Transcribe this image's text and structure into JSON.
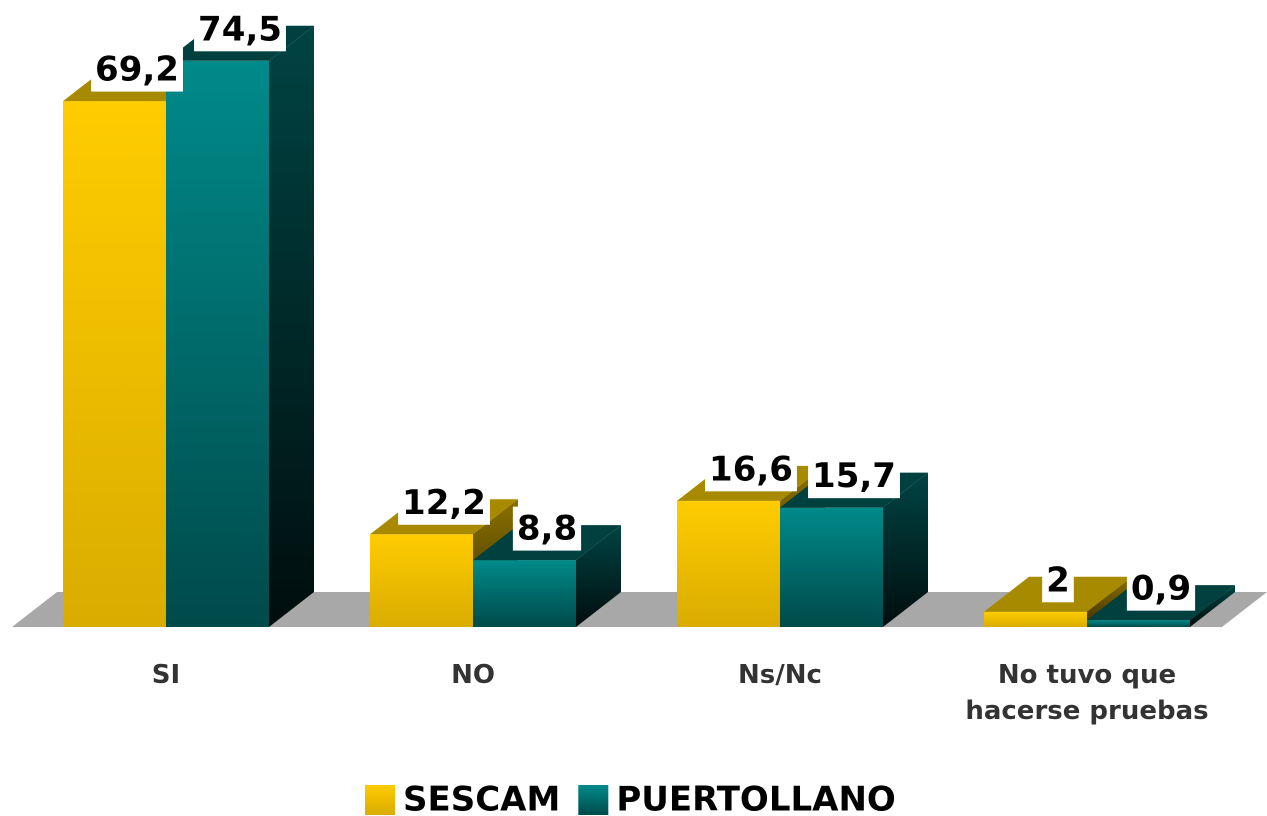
{
  "chart_data": {
    "type": "bar3d",
    "categories": [
      "SI",
      "NO",
      "Ns/Nc",
      "No tuvo que hacerse pruebas"
    ],
    "series": [
      {
        "name": "SESCAM",
        "color": "#ffcc00",
        "values": [
          69.2,
          12.2,
          16.6,
          2
        ],
        "value_labels": [
          "69,2",
          "12,2",
          "16,6",
          "2"
        ]
      },
      {
        "name": "PUERTOLLANO",
        "color": "#008080",
        "values": [
          74.5,
          8.8,
          15.7,
          0.9
        ],
        "value_labels": [
          "74,5",
          "8,8",
          "15,7",
          "0,9"
        ]
      }
    ],
    "legend": "bottom"
  }
}
